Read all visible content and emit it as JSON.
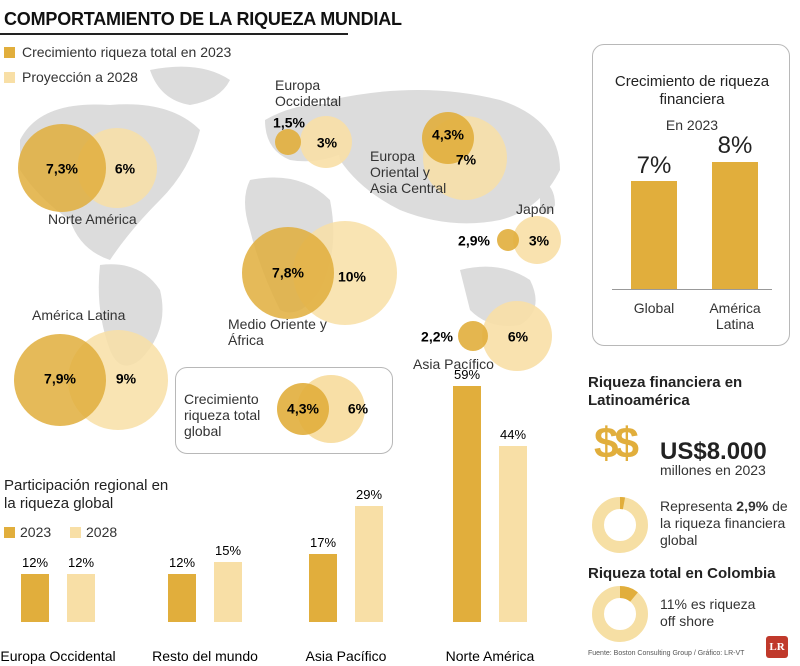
{
  "header": {
    "title": "COMPORTAMIENTO DE LA RIQUEZA MUNDIAL"
  },
  "colors": {
    "c2023": "#e1ae3c",
    "c2028": "#f8dfa6",
    "map": "#dcdcdc",
    "ring": "#f6dfa4"
  },
  "legend": {
    "items": [
      "Crecimiento riqueza total en 2023",
      "Proyección a 2028"
    ]
  },
  "map_bubbles": [
    {
      "region": "Norte América",
      "v2023": "7,3%",
      "v2028": "6%"
    },
    {
      "region": "Europa Occidental",
      "v2023": "1,5%",
      "v2028": "3%"
    },
    {
      "region": "Europa Oriental y Asia Central",
      "v2023": "4,3%",
      "v2028": "7%"
    },
    {
      "region": "Japón",
      "v2023": "2,9%",
      "v2028": "3%"
    },
    {
      "region": "Medio Oriente y África",
      "v2023": "7,8%",
      "v2028": "10%"
    },
    {
      "region": "América Latina",
      "v2023": "7,9%",
      "v2028": "9%"
    },
    {
      "region": "Asia Pacífico",
      "v2023": "2,2%",
      "v2028": "6%"
    }
  ],
  "global_growth": {
    "label": "Crecimiento riqueza total global",
    "v2023": "4,3%",
    "v2028": "6%"
  },
  "financial_panel": {
    "title": "Crecimiento de riqueza financiera",
    "subtitle": "En 2023",
    "bars": [
      {
        "label": "Global",
        "value_label": "7%"
      },
      {
        "label": "América Latina",
        "value_label": "8%"
      }
    ]
  },
  "chart_data": {
    "type": "bar",
    "title": "Participación regional en la riqueza global",
    "categories": [
      "Europa Occidental",
      "Resto del mundo",
      "Asia Pacífico",
      "Norte América"
    ],
    "series": [
      {
        "name": "2023",
        "values": [
          12,
          12,
          17,
          59
        ]
      },
      {
        "name": "2028",
        "values": [
          12,
          15,
          29,
          44
        ]
      }
    ],
    "ylim": [
      0,
      60
    ],
    "grid": false,
    "legend_position": "top-left"
  },
  "latam": {
    "title": "Riqueza financiera en Latinoamérica",
    "dollar_icon": "$$",
    "amount": "US$8.000",
    "amount_sub": "millones en 2023",
    "share_pre": "Representa ",
    "share_value": "2,9%",
    "share_post": " de la riqueza financiera global",
    "share_fraction": 0.029
  },
  "colombia": {
    "title": "Riqueza total en Colombia",
    "text_value": "11%",
    "text_post": " es riqueza off shore",
    "fraction": 0.11
  },
  "footer": {
    "source": "Fuente: Boston Consulting Group / Gráfico: LR-VT",
    "logo": "LR"
  }
}
